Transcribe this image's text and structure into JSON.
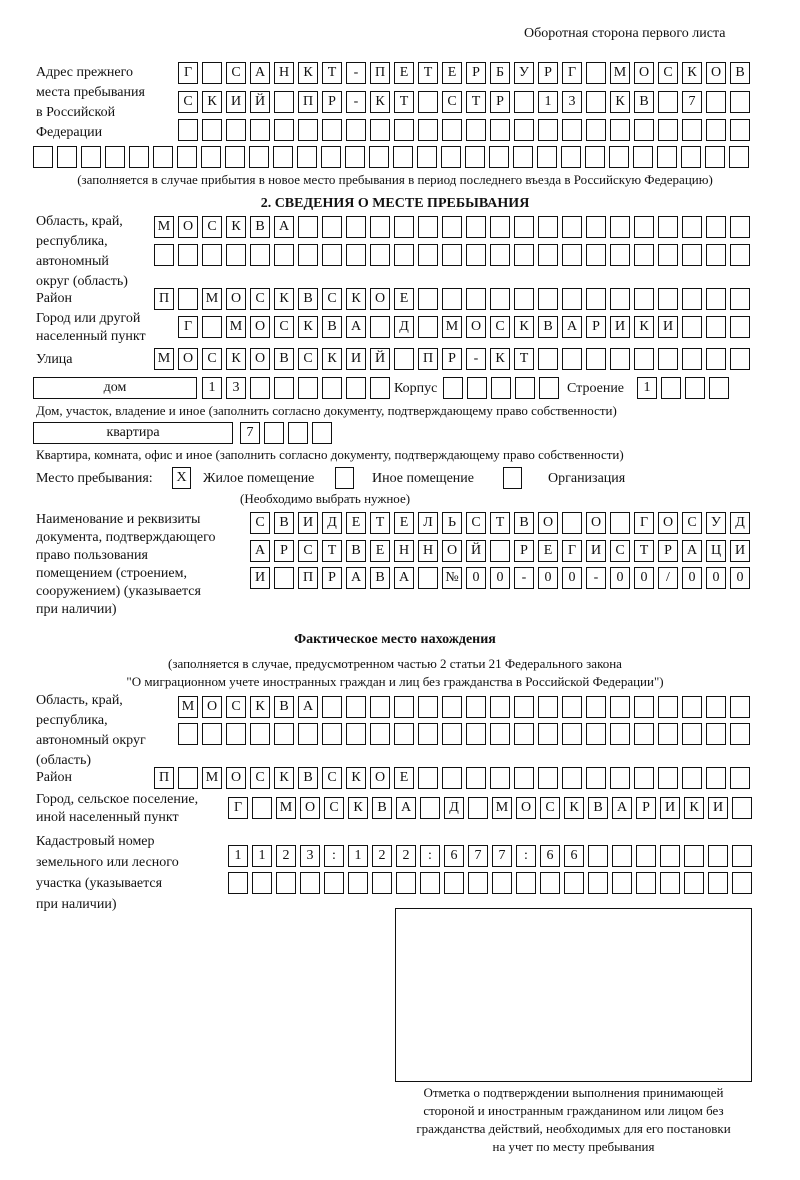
{
  "header": "Оборотная сторона первого листа",
  "prev_address": {
    "label": [
      "Адрес прежнего",
      "места пребывания",
      "в Российской",
      "Федерации"
    ],
    "rows": [
      [
        "Г",
        "",
        "С",
        "А",
        "Н",
        "К",
        "Т",
        "-",
        "П",
        "Е",
        "Т",
        "Е",
        "Р",
        "Б",
        "У",
        "Р",
        "Г",
        "",
        "М",
        "О",
        "С",
        "К",
        "О",
        "В"
      ],
      [
        "С",
        "К",
        "И",
        "Й",
        "",
        "П",
        "Р",
        "-",
        "К",
        "Т",
        "",
        "С",
        "Т",
        "Р",
        "",
        "1",
        "3",
        "",
        "К",
        "В",
        "",
        "7",
        "",
        ""
      ],
      [
        "",
        "",
        "",
        "",
        "",
        "",
        "",
        "",
        "",
        "",
        "",
        "",
        "",
        "",
        "",
        "",
        "",
        "",
        "",
        "",
        "",
        "",
        "",
        ""
      ],
      [
        "",
        "",
        "",
        "",
        "",
        "",
        "",
        "",
        "",
        "",
        "",
        "",
        "",
        "",
        "",
        "",
        "",
        "",
        "",
        "",
        "",
        "",
        "",
        "",
        "",
        "",
        "",
        "",
        "",
        ""
      ]
    ],
    "note": "(заполняется в случае прибытия в новое место пребывания в период последнего въезда в Российскую Федерацию)"
  },
  "section2": {
    "title": "2. СВЕДЕНИЯ О МЕСТЕ ПРЕБЫВАНИЯ",
    "region_label": [
      "Область, край,",
      "республика,",
      "автономный",
      "округ (область)"
    ],
    "region_rows": [
      [
        "М",
        "О",
        "С",
        "К",
        "В",
        "А",
        "",
        "",
        "",
        "",
        "",
        "",
        "",
        "",
        "",
        "",
        "",
        "",
        "",
        "",
        "",
        "",
        "",
        "",
        ""
      ],
      [
        "",
        "",
        "",
        "",
        "",
        "",
        "",
        "",
        "",
        "",
        "",
        "",
        "",
        "",
        "",
        "",
        "",
        "",
        "",
        "",
        "",
        "",
        "",
        "",
        ""
      ]
    ],
    "district_label": "Район",
    "district_row": [
      "П",
      "",
      "М",
      "О",
      "С",
      "К",
      "В",
      "С",
      "К",
      "О",
      "Е",
      "",
      "",
      "",
      "",
      "",
      "",
      "",
      "",
      "",
      "",
      "",
      "",
      "",
      ""
    ],
    "city_label": [
      "Город или другой",
      "населенный пункт"
    ],
    "city_row": [
      "Г",
      "",
      "М",
      "О",
      "С",
      "К",
      "В",
      "А",
      "",
      "Д",
      "",
      "М",
      "О",
      "С",
      "К",
      "В",
      "А",
      "Р",
      "И",
      "К",
      "И",
      "",
      "",
      ""
    ],
    "street_label": "Улица",
    "street_row": [
      "М",
      "О",
      "С",
      "К",
      "О",
      "В",
      "С",
      "К",
      "И",
      "Й",
      "",
      "П",
      "Р",
      "-",
      "К",
      "Т",
      "",
      "",
      "",
      "",
      "",
      "",
      "",
      "",
      ""
    ],
    "house_type": "дом",
    "house_cells": [
      "1",
      "3",
      "",
      "",
      "",
      "",
      "",
      ""
    ],
    "korpus_label": "Корпус",
    "korpus_cells": [
      "",
      "",
      "",
      "",
      ""
    ],
    "building_label": "Строение",
    "building_cells": [
      "1",
      "",
      "",
      ""
    ],
    "house_note": "Дом, участок, владение и иное (заполнить согласно документу, подтверждающему право собственности)",
    "flat_type": "квартира",
    "flat_cells": [
      "7",
      "",
      "",
      ""
    ],
    "flat_note": "Квартира, комната, офис и иное (заполнить согласно документу, подтверждающему право собственности)",
    "stay_label": "Место пребывания:",
    "stay_options": [
      {
        "label": "Жилое помещение",
        "mark": "X"
      },
      {
        "label": "Иное помещение",
        "mark": ""
      },
      {
        "label": "Организация",
        "mark": ""
      }
    ],
    "stay_note": "(Необходимо выбрать нужное)",
    "doc_label": [
      "Наименование и реквизиты",
      "документа, подтверждающего",
      "право пользования",
      "помещением (строением,",
      "сооружением) (указывается",
      "при наличии)"
    ],
    "doc_rows": [
      [
        "С",
        "В",
        "И",
        "Д",
        "Е",
        "Т",
        "Е",
        "Л",
        "Ь",
        "С",
        "Т",
        "В",
        "О",
        "",
        "О",
        "",
        "Г",
        "О",
        "С",
        "У",
        "Д"
      ],
      [
        "А",
        "Р",
        "С",
        "Т",
        "В",
        "Е",
        "Н",
        "Н",
        "О",
        "Й",
        "",
        "Р",
        "Е",
        "Г",
        "И",
        "С",
        "Т",
        "Р",
        "А",
        "Ц",
        "И"
      ],
      [
        "И",
        "",
        "П",
        "Р",
        "А",
        "В",
        "А",
        "",
        "№",
        "0",
        "0",
        "-",
        "0",
        "0",
        "-",
        "0",
        "0",
        "/",
        "0",
        "0",
        "0"
      ]
    ]
  },
  "actual": {
    "title": "Фактическое место нахождения",
    "note": [
      "(заполняется в случае, предусмотренном частью 2 статьи 21 Федерального закона",
      "\"О миграционном учете иностранных граждан и лиц без гражданства в Российской Федерации\")"
    ],
    "region_label": [
      "Область, край,",
      "республика,",
      "автономный округ",
      "(область)"
    ],
    "region_rows": [
      [
        "М",
        "О",
        "С",
        "К",
        "В",
        "А",
        "",
        "",
        "",
        "",
        "",
        "",
        "",
        "",
        "",
        "",
        "",
        "",
        "",
        "",
        "",
        "",
        "",
        ""
      ],
      [
        "",
        "",
        "",
        "",
        "",
        "",
        "",
        "",
        "",
        "",
        "",
        "",
        "",
        "",
        "",
        "",
        "",
        "",
        "",
        "",
        "",
        "",
        "",
        ""
      ]
    ],
    "district_label": "Район",
    "district_row": [
      "П",
      "",
      "М",
      "О",
      "С",
      "К",
      "В",
      "С",
      "К",
      "О",
      "Е",
      "",
      "",
      "",
      "",
      "",
      "",
      "",
      "",
      "",
      "",
      "",
      "",
      "",
      ""
    ],
    "city_label": [
      "Город, сельское поселение,",
      "иной населенный пункт"
    ],
    "city_row": [
      "Г",
      "",
      "М",
      "О",
      "С",
      "К",
      "В",
      "А",
      "",
      "Д",
      "",
      "М",
      "О",
      "С",
      "К",
      "В",
      "А",
      "Р",
      "И",
      "К",
      "И",
      ""
    ],
    "cadastral_label": [
      "Кадастровый номер",
      "земельного или лесного",
      "участка (указывается",
      "при наличии)"
    ],
    "cadastral_rows": [
      [
        "1",
        "1",
        "2",
        "3",
        ":",
        "1",
        "2",
        "2",
        ":",
        "6",
        "7",
        "7",
        ":",
        "6",
        "6",
        "",
        "",
        "",
        "",
        "",
        "",
        ""
      ],
      [
        "",
        "",
        "",
        "",
        "",
        "",
        "",
        "",
        "",
        "",
        "",
        "",
        "",
        "",
        "",
        "",
        "",
        "",
        "",
        "",
        "",
        ""
      ]
    ]
  },
  "stamp_caption": [
    "Отметка о подтверждении выполнения принимающей",
    "стороной и иностранным гражданином или лицом без",
    "гражданства действий, необходимых для его постановки",
    "на учет по месту пребывания"
  ]
}
